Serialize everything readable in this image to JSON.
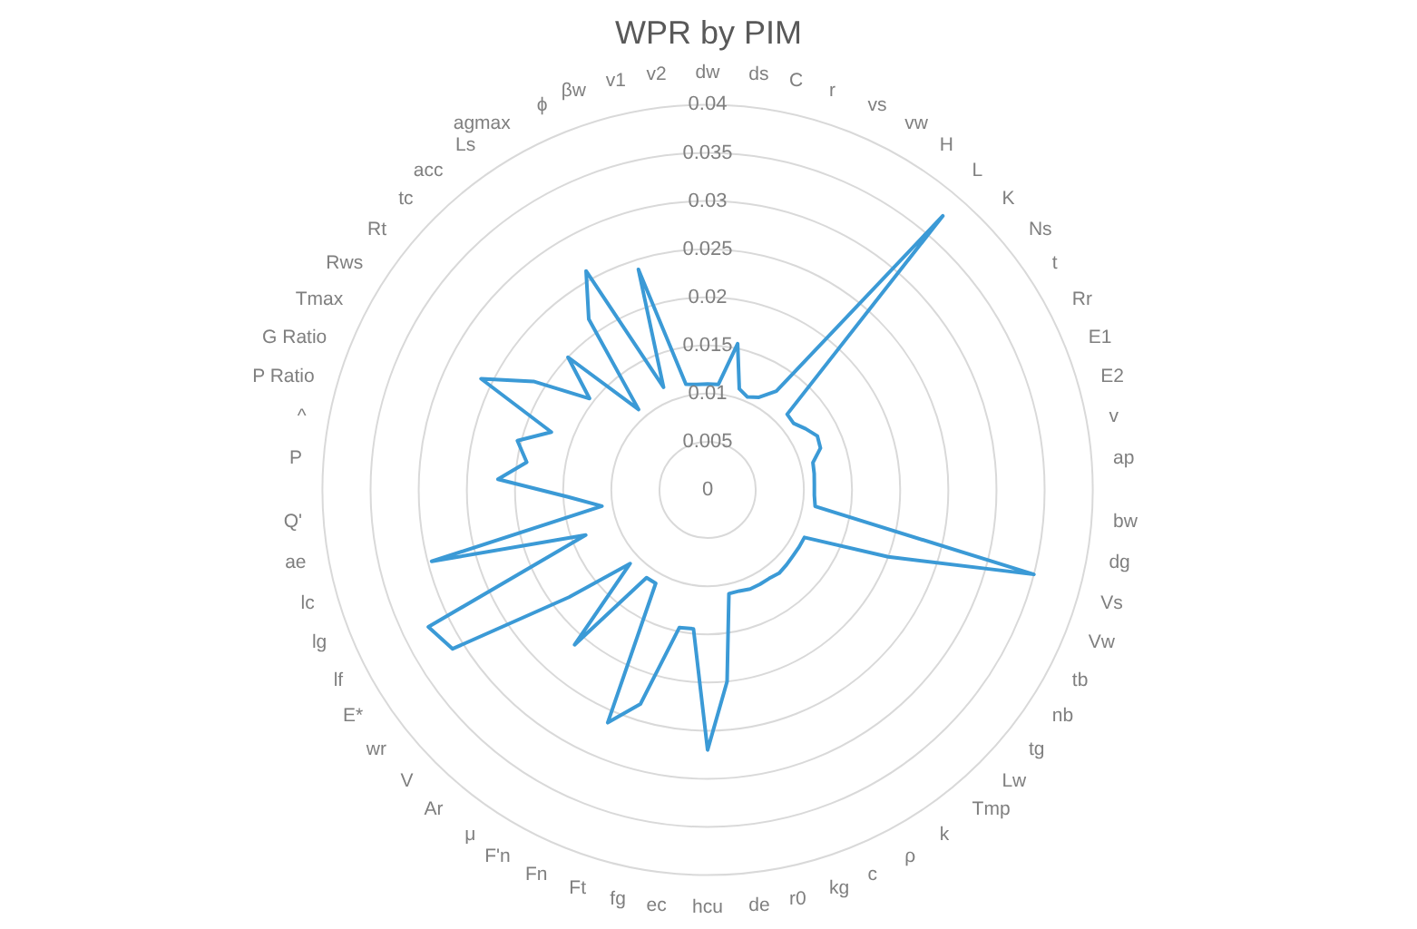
{
  "chart_data": {
    "type": "radar",
    "title": "WPR by PIM",
    "categories": [
      "dw",
      "ds",
      "C",
      "r",
      "vs",
      "vw",
      "H",
      "L",
      "K",
      "Ns",
      "t",
      "Rr",
      "E1",
      "E2",
      "v",
      "ap",
      "bw",
      "dg",
      "Vs",
      "Vw",
      "tb",
      "nb",
      "tg",
      "Lw",
      "Tmp",
      "k",
      "ρ",
      "c",
      "kg",
      "r0",
      "de",
      "hcu",
      "ec",
      "fg",
      "Ft",
      "Fn",
      "F'n",
      "μ",
      "Ar",
      "V",
      "wr",
      "E*",
      "lf",
      "lg",
      "lc",
      "ae",
      "Q'",
      "P",
      "^",
      "P Ratio",
      "G Ratio",
      "Tmax",
      "Rws",
      "Rt",
      "tc",
      "acc",
      "Ls",
      "agmax",
      "ϕ",
      "βw",
      "v1",
      "v2"
    ],
    "series": [
      {
        "color": "#3b9ad6",
        "values": [
          0.011,
          0.011,
          0.0155,
          0.011,
          0.0105,
          0.011,
          0.0125,
          0.0375,
          0.0114,
          0.0113,
          0.012,
          0.0127,
          0.0125,
          0.0113,
          0.0112,
          0.0111,
          0.0111,
          0.0113,
          0.035,
          0.02,
          0.0112,
          0.0112,
          0.0112,
          0.0113,
          0.0114,
          0.0112,
          0.0112,
          0.0112,
          0.011,
          0.011,
          0.02,
          0.027,
          0.0145,
          0.0146,
          0.0233,
          0.0263,
          0.0111,
          0.0111,
          0.0212,
          0.0111,
          0.0182,
          0.0312,
          0.0323,
          0.0135,
          0.0296,
          0.0111,
          0.0145,
          0.0218,
          0.019,
          0.0204,
          0.0173,
          0.0262,
          0.0213,
          0.0155,
          0.02,
          0.011,
          0.0216,
          0.026,
          0.0116,
          0.024,
          0.0112,
          0.011
        ]
      }
    ],
    "ylim": [
      0,
      0.04
    ],
    "yticks": [
      0,
      0.005,
      0.01,
      0.015,
      0.02,
      0.025,
      0.03,
      0.035,
      0.04
    ],
    "grid": true,
    "legend": false,
    "marker": "none"
  }
}
